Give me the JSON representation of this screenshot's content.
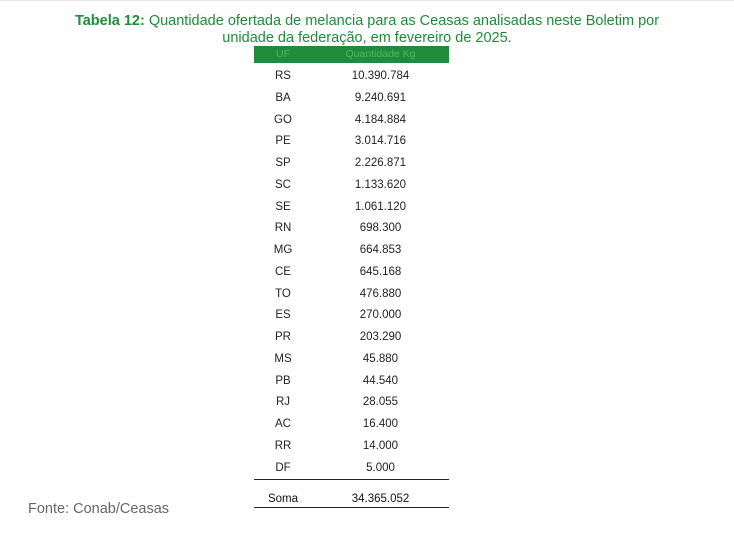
{
  "caption": {
    "label": "Tabela 12:",
    "line1": " Quantidade ofertada de melancia para as Ceasas analisadas neste Boletim por",
    "line2": "unidade da federação, em fevereiro de 2025."
  },
  "table": {
    "headers": {
      "uf": "UF",
      "quantity": "Quantidade Kg"
    },
    "rows": [
      {
        "uf": "RS",
        "qty": "10.390.784"
      },
      {
        "uf": "BA",
        "qty": "9.240.691"
      },
      {
        "uf": "GO",
        "qty": "4.184.884"
      },
      {
        "uf": "PE",
        "qty": "3.014.716"
      },
      {
        "uf": "SP",
        "qty": "2.226.871"
      },
      {
        "uf": "SC",
        "qty": "1.133.620"
      },
      {
        "uf": "SE",
        "qty": "1.061.120"
      },
      {
        "uf": "RN",
        "qty": "698.300"
      },
      {
        "uf": "MG",
        "qty": "664.853"
      },
      {
        "uf": "CE",
        "qty": "645.168"
      },
      {
        "uf": "TO",
        "qty": "476.880"
      },
      {
        "uf": "ES",
        "qty": "270.000"
      },
      {
        "uf": "PR",
        "qty": "203.290"
      },
      {
        "uf": "MS",
        "qty": "45.880"
      },
      {
        "uf": "PB",
        "qty": "44.540"
      },
      {
        "uf": "RJ",
        "qty": "28.055"
      },
      {
        "uf": "AC",
        "qty": "16.400"
      },
      {
        "uf": "RR",
        "qty": "14.000"
      },
      {
        "uf": "DF",
        "qty": "5.000"
      }
    ],
    "total": {
      "label": "Soma",
      "value": "34.365.052"
    }
  },
  "source": "Fonte: Conab/Ceasas",
  "colors": {
    "accent_green": "#1e8c3a",
    "header_text": "#4fb869",
    "source_text": "#666666"
  }
}
